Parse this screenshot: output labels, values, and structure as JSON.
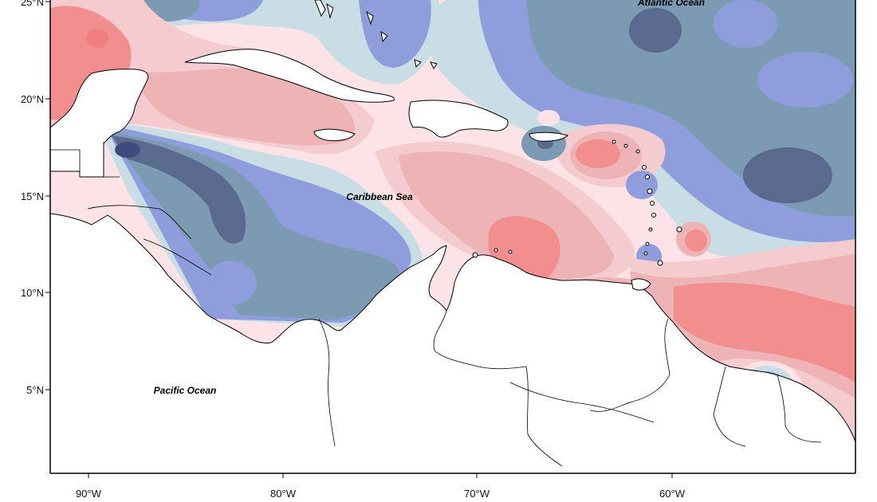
{
  "map": {
    "labels": {
      "atlantic": "Atlantic Ocean",
      "caribbean": "Caribbean Sea",
      "pacific": "Pacific Ocean"
    },
    "y_ticks": [
      "25°N",
      "20°N",
      "15°N",
      "10°N",
      "5°N"
    ],
    "x_ticks": [
      "90°W",
      "80°W",
      "70°W",
      "60°W"
    ],
    "colors": {
      "deep_blue": "#5a6a8e",
      "slate_blue": "#7d9ab3",
      "periwinkle": "#8e9edd",
      "pale_blue": "#c9dde4",
      "pale_pink": "#fbe3e6",
      "light_pink": "#f4cccf",
      "rose": "#eeb3b5",
      "salmon": "#f28e8e",
      "land": "#ffffff",
      "navy": "#3f4a7c"
    }
  }
}
